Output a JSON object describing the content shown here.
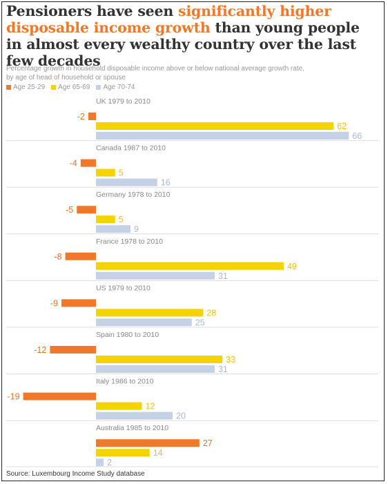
{
  "headline": {
    "part1": "Pensioners have seen ",
    "highlight": "significantly higher disposable income growth",
    "part2": " than young people in almost every wealthy country over the last few decades"
  },
  "subtitle": {
    "line1": "Percentage growth in household disposable income above or below national average growth rate,",
    "line2": "by age of head of household or spouse"
  },
  "legend": [
    {
      "label": "Age 25-29",
      "color": "#f0782a"
    },
    {
      "label": "Age 65-69",
      "color": "#f5d300"
    },
    {
      "label": "Age 70-74",
      "color": "#c5d1e6"
    }
  ],
  "source": "Source: Luxembourg Income Study database",
  "chart_data": {
    "type": "bar",
    "orientation": "horizontal",
    "categories": [
      "UK 1979 to 2010",
      "Canada 1987 to 2010",
      "Germany 1978 to 2010",
      "France 1978 to 2010",
      "US 1979 to 2010",
      "Spain 1980 to 2010",
      "Italy 1986 to 2010",
      "Australia 1985 to 2010"
    ],
    "series": [
      {
        "name": "Age 25-29",
        "color": "#f0782a",
        "label_color": "#e8731f",
        "values": [
          -2,
          -4,
          -5,
          -8,
          -9,
          -12,
          -19,
          27
        ]
      },
      {
        "name": "Age 65-69",
        "color": "#f5d300",
        "label_color": "#f0c400",
        "values": [
          62,
          5,
          5,
          49,
          28,
          33,
          12,
          14
        ]
      },
      {
        "name": "Age 70-74",
        "color": "#c5d1e6",
        "label_color": "#aab8d0",
        "values": [
          66,
          16,
          9,
          31,
          25,
          31,
          20,
          2
        ]
      }
    ],
    "title": "",
    "xlabel": "",
    "ylabel": "",
    "grid": false,
    "legend_position": "top-left"
  }
}
